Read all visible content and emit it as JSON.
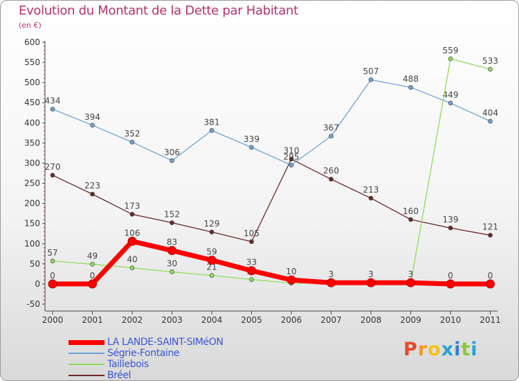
{
  "title": "Evolution du Montant de la Dette par Habitant",
  "subtitle": "(en €)",
  "logo": {
    "chars": [
      "P",
      "r",
      "o",
      "x",
      "i",
      "t",
      "i"
    ],
    "colors": [
      "#e8482b",
      "#f39a1e",
      "#f5c01a",
      "#2aa0d8",
      "#3c7bd0",
      "#8dc63f",
      "#2aa0d8"
    ]
  },
  "chart_data": {
    "type": "line",
    "title": "Evolution du Montant de la Dette par Habitant",
    "ylabel": "(en €)",
    "x": [
      2000,
      2001,
      2002,
      2003,
      2004,
      2005,
      2006,
      2007,
      2008,
      2009,
      2010,
      2011
    ],
    "x_tick_labels": [
      "2000",
      "2001",
      "2002",
      "2003",
      "2004",
      "2005",
      "2006",
      "2007",
      "2008",
      "2009",
      "2010",
      "2011"
    ],
    "y_ticks": [
      -50,
      0,
      50,
      100,
      150,
      200,
      250,
      300,
      350,
      400,
      450,
      500,
      550,
      600
    ],
    "ylim": [
      -50,
      600
    ],
    "grid": false,
    "legend_position": "bottom-left",
    "series": [
      {
        "name": "Bréel",
        "color": "#6b2a2a",
        "values": [
          270,
          223,
          173,
          152,
          129,
          105,
          310,
          260,
          213,
          160,
          139,
          121
        ],
        "labels": [
          "270",
          "223",
          "173",
          "152",
          "129",
          "105",
          "310",
          "260",
          "213",
          "160",
          "139",
          "121"
        ]
      },
      {
        "name": "Ségrie-Fontaine",
        "color": "#6fa3d6",
        "values": [
          434,
          394,
          352,
          306,
          381,
          339,
          295,
          367,
          507,
          488,
          449,
          404
        ],
        "labels": [
          "434",
          "394",
          "352",
          "306",
          "381",
          "339",
          "295",
          "367",
          "507",
          "488",
          "449",
          "404"
        ]
      },
      {
        "name": "Taillebois",
        "color": "#8fdc5a",
        "values": [
          57,
          49,
          40,
          30,
          21,
          11,
          2,
          2,
          2,
          2,
          559,
          533
        ],
        "labels": [
          "57",
          "49",
          "40",
          "30",
          "21",
          "11",
          "",
          "",
          "",
          "",
          "559",
          "533"
        ]
      },
      {
        "name": "LA LANDE-SAINT-SIMéON",
        "color": "#ff0000",
        "values": [
          0,
          0,
          106,
          83,
          59,
          33,
          10,
          3,
          3,
          3,
          0,
          0
        ],
        "labels": [
          "0",
          "0",
          "106",
          "83",
          "59",
          "33",
          "10",
          "3",
          "3",
          "3",
          "0",
          "0"
        ]
      }
    ],
    "legend_order": [
      "LA LANDE-SAINT-SIMéON",
      "Ségrie-Fontaine",
      "Taillebois",
      "Bréel"
    ]
  }
}
